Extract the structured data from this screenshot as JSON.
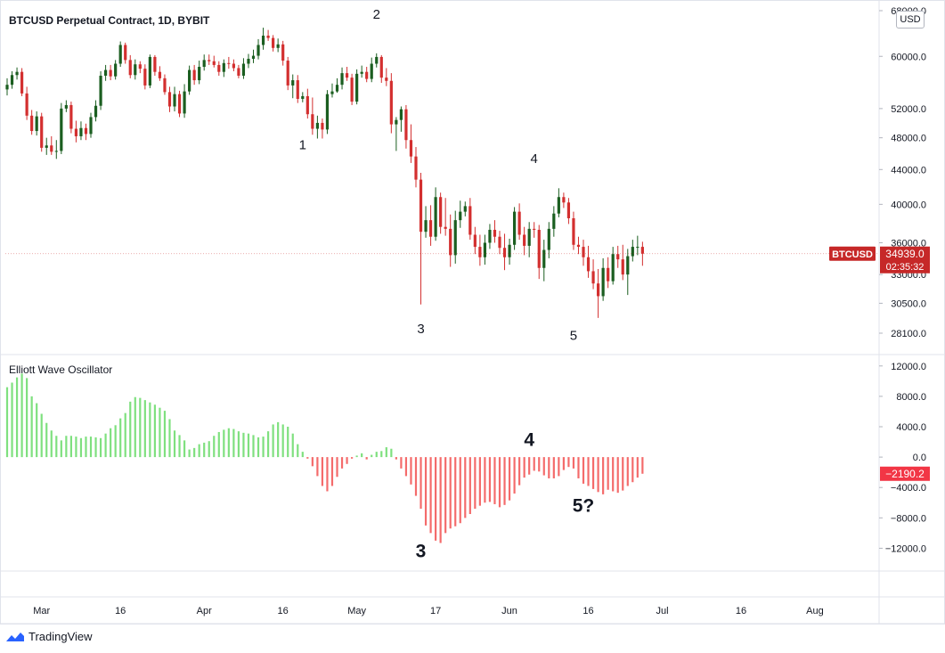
{
  "header": {
    "title": "BTCUSD Perpetual Contract, 1D, BYBIT",
    "currency": "USD"
  },
  "oscillator_panel": {
    "title": "Elliott Wave Oscillator"
  },
  "branding": {
    "name": "TradingView"
  },
  "price_tag": {
    "symbol": "BTCUSD",
    "price": "34939.0",
    "countdown": "02:35:32",
    "color": "#c62828"
  },
  "osc_tag": {
    "value": "−2190.2",
    "color": "#f23645"
  },
  "colors": {
    "up": "#1b5e20",
    "down": "#d32f2f",
    "osc_pos": "#7fe07f",
    "osc_neg": "#f46b6b"
  },
  "chart_data": [
    {
      "type": "candlestick",
      "title": "BTCUSD Perpetual Contract, 1D, BYBIT",
      "ylim": [
        26500,
        69000
      ],
      "y_ticks": [
        "68000.0",
        "60000.0",
        "52000.0",
        "48000.0",
        "44000.0",
        "40000.0",
        "36000.0",
        "33000.0",
        "30500.0",
        "28100.0"
      ],
      "y_tick_values": [
        68000,
        60000,
        52000,
        48000,
        44000,
        40000,
        36000,
        33000,
        30500,
        28100
      ],
      "x_ticks": [
        "Mar",
        "16",
        "Apr",
        "16",
        "May",
        "17",
        "Jun",
        "16",
        "Jul",
        "16",
        "Aug"
      ],
      "wave_labels": [
        {
          "label": "1",
          "day": 60,
          "value": 46500
        },
        {
          "label": "2",
          "day": 75,
          "value": 66500
        },
        {
          "label": "3",
          "day": 84,
          "value": 28100
        },
        {
          "label": "4",
          "day": 107,
          "value": 44800
        },
        {
          "label": "5",
          "day": 115,
          "value": 27600
        }
      ],
      "close": [
        55500,
        57000,
        57500,
        54200,
        51000,
        48900,
        50900,
        46700,
        47000,
        46200,
        46300,
        52000,
        52500,
        49200,
        48200,
        49300,
        48500,
        50800,
        52400,
        56900,
        57800,
        56800,
        58800,
        61900,
        59400,
        57000,
        58700,
        58000,
        55400,
        59900,
        57500,
        56500,
        54400,
        52300,
        54100,
        51300,
        54500,
        57800,
        56200,
        58300,
        59400,
        59200,
        58600,
        57500,
        58900,
        58800,
        58100,
        56900,
        58800,
        59600,
        60100,
        61900,
        63500,
        63100,
        61400,
        62000,
        59300,
        55400,
        56200,
        53400,
        53800,
        51200,
        49200,
        50000,
        49100,
        54100,
        54500,
        55500,
        57300,
        56600,
        53000,
        57200,
        57500,
        56400,
        58800,
        59900,
        56600,
        56100,
        49800,
        50400,
        51900,
        47700,
        45600,
        42800,
        37100,
        38300,
        36600,
        40800,
        37600,
        37400,
        34800,
        38300,
        39200,
        39800,
        36800,
        35600,
        34600,
        36000,
        37300,
        36600,
        35500,
        34600,
        35800,
        39200,
        36800,
        35700,
        37400,
        37300,
        33600,
        35300,
        37400,
        39000,
        40800,
        40200,
        38500,
        35800,
        35600,
        34600,
        33300,
        32200,
        31100,
        33600,
        32400,
        34900,
        34400,
        33000,
        34700,
        35600,
        35600,
        34939
      ],
      "open": [
        54800,
        55500,
        57000,
        57500,
        54200,
        51000,
        48900,
        50900,
        46700,
        47000,
        46200,
        46300,
        52000,
        52500,
        49200,
        48200,
        49300,
        48500,
        50800,
        52400,
        56900,
        57800,
        56800,
        58800,
        61900,
        59400,
        57000,
        58700,
        58000,
        55400,
        59900,
        57500,
        56500,
        54400,
        52300,
        54100,
        51300,
        54500,
        57800,
        56200,
        58300,
        59400,
        59200,
        58600,
        57500,
        58900,
        58800,
        58100,
        56900,
        58800,
        59600,
        60100,
        61900,
        63500,
        63100,
        61400,
        62000,
        59300,
        55400,
        56200,
        53400,
        53800,
        51200,
        49200,
        50000,
        49100,
        54100,
        54500,
        55500,
        57300,
        56600,
        53000,
        57200,
        57500,
        56400,
        58800,
        59900,
        56600,
        56100,
        49800,
        50400,
        51900,
        47700,
        45600,
        42800,
        37100,
        38300,
        36600,
        40800,
        37600,
        37400,
        34800,
        38300,
        39200,
        39800,
        36800,
        35600,
        34600,
        36000,
        37300,
        36600,
        35500,
        34600,
        35800,
        39200,
        36800,
        35700,
        37400,
        37300,
        33600,
        35300,
        37400,
        39000,
        40800,
        40200,
        38500,
        35800,
        35600,
        34600,
        33300,
        32200,
        31100,
        33600,
        32400,
        34900,
        34400,
        33000,
        34700,
        35600,
        35600
      ],
      "high": [
        56500,
        57600,
        58200,
        58100,
        55200,
        51800,
        51600,
        51400,
        48000,
        48200,
        47700,
        52800,
        53200,
        53000,
        50300,
        50200,
        49900,
        51400,
        53200,
        57600,
        58600,
        58600,
        59400,
        62500,
        62300,
        60200,
        59500,
        59200,
        58700,
        60300,
        60200,
        58400,
        57100,
        55200,
        55200,
        54600,
        55600,
        58500,
        58600,
        59300,
        60300,
        60300,
        60100,
        59200,
        59500,
        59900,
        59500,
        58600,
        59700,
        60400,
        61100,
        62900,
        64900,
        64500,
        63600,
        63000,
        62600,
        59900,
        57100,
        57000,
        54400,
        54900,
        53600,
        51000,
        50600,
        54700,
        55700,
        56500,
        58200,
        58300,
        57200,
        57900,
        58500,
        58300,
        59800,
        60500,
        60200,
        58100,
        57300,
        50800,
        52300,
        52500,
        49800,
        46800,
        43600,
        39800,
        39900,
        41900,
        41300,
        40700,
        38900,
        39300,
        40400,
        40300,
        40700,
        37600,
        36800,
        36800,
        37900,
        38300,
        37200,
        36900,
        36400,
        39700,
        40100,
        37600,
        38100,
        38100,
        37800,
        36300,
        38100,
        39800,
        41800,
        41300,
        40700,
        39200,
        36600,
        36300,
        35700,
        34400,
        33500,
        34500,
        34600,
        35600,
        35700,
        35800,
        35400,
        36300,
        36700,
        36100
      ],
      "low": [
        53900,
        54900,
        56300,
        53800,
        50400,
        48400,
        48300,
        46200,
        45800,
        45800,
        45300,
        45900,
        51500,
        48600,
        47400,
        47700,
        47700,
        48000,
        50200,
        51800,
        56100,
        56200,
        56300,
        58300,
        58800,
        56500,
        56300,
        57300,
        54800,
        55000,
        56900,
        56100,
        54000,
        51500,
        51600,
        50800,
        50700,
        54000,
        55500,
        55600,
        57700,
        58600,
        58200,
        56900,
        56700,
        58000,
        57600,
        56500,
        56400,
        58100,
        58900,
        59500,
        61100,
        62600,
        60800,
        60700,
        58500,
        54700,
        53500,
        52800,
        52900,
        50600,
        48400,
        47900,
        47900,
        48500,
        53600,
        54300,
        54800,
        56100,
        52500,
        52600,
        56600,
        55900,
        55900,
        58200,
        55800,
        55300,
        48600,
        46300,
        48800,
        46600,
        44800,
        41900,
        30400,
        36500,
        35700,
        36200,
        36900,
        36700,
        33700,
        34000,
        37500,
        38700,
        36300,
        34900,
        33800,
        33900,
        35400,
        36000,
        34900,
        33400,
        33900,
        35300,
        36300,
        34800,
        34600,
        36500,
        32600,
        32400,
        34500,
        36600,
        38600,
        39600,
        37900,
        35300,
        34900,
        33800,
        32700,
        31700,
        29300,
        30700,
        31800,
        32100,
        33600,
        32500,
        31200,
        34200,
        34800,
        33800
      ],
      "n_days": 130
    },
    {
      "type": "bar",
      "title": "Elliott Wave Oscillator",
      "ylim": [
        -15000,
        13500
      ],
      "y_ticks": [
        "12000.0",
        "8000.0",
        "4000.0",
        "0.0",
        "−4000.0",
        "−8000.0",
        "−12000.0"
      ],
      "y_tick_values": [
        12000,
        8000,
        4000,
        0,
        -4000,
        -8000,
        -12000
      ],
      "wave_labels": [
        {
          "label": "3",
          "day": 84,
          "value": -13200
        },
        {
          "label": "4",
          "day": 106,
          "value": 1500
        },
        {
          "label": "5?",
          "day": 117,
          "value": -7200
        }
      ],
      "values": [
        9200,
        9800,
        10500,
        11000,
        10400,
        8000,
        7100,
        5700,
        4500,
        3500,
        2800,
        2200,
        2800,
        2800,
        2700,
        2500,
        2700,
        2700,
        2600,
        2500,
        3100,
        3800,
        4200,
        5100,
        5800,
        7300,
        7900,
        7800,
        7500,
        7200,
        6900,
        6500,
        6100,
        5000,
        3500,
        2900,
        2200,
        1000,
        1200,
        1700,
        1900,
        2100,
        2800,
        3300,
        3600,
        3800,
        3700,
        3400,
        3200,
        3100,
        2900,
        2600,
        2700,
        3400,
        4300,
        4600,
        4300,
        4000,
        3100,
        1700,
        700,
        -200,
        -1200,
        -2500,
        -3800,
        -4500,
        -3800,
        -2600,
        -1500,
        -900,
        -200,
        200,
        500,
        -300,
        300,
        700,
        800,
        1300,
        1100,
        -300,
        -1500,
        -2500,
        -3600,
        -5100,
        -6800,
        -9000,
        -10000,
        -11000,
        -11300,
        -10000,
        -9400,
        -9100,
        -8700,
        -8000,
        -7500,
        -6800,
        -6400,
        -6000,
        -5900,
        -6200,
        -6600,
        -6300,
        -5700,
        -4800,
        -3700,
        -2700,
        -2300,
        -1800,
        -1900,
        -2400,
        -2800,
        -2800,
        -2500,
        -1700,
        -1300,
        -1500,
        -2800,
        -3500,
        -3800,
        -4200,
        -4600,
        -4900,
        -4300,
        -4500,
        -4700,
        -4400,
        -3800,
        -3300,
        -2700,
        -2190
      ],
      "n_days": 130
    }
  ]
}
